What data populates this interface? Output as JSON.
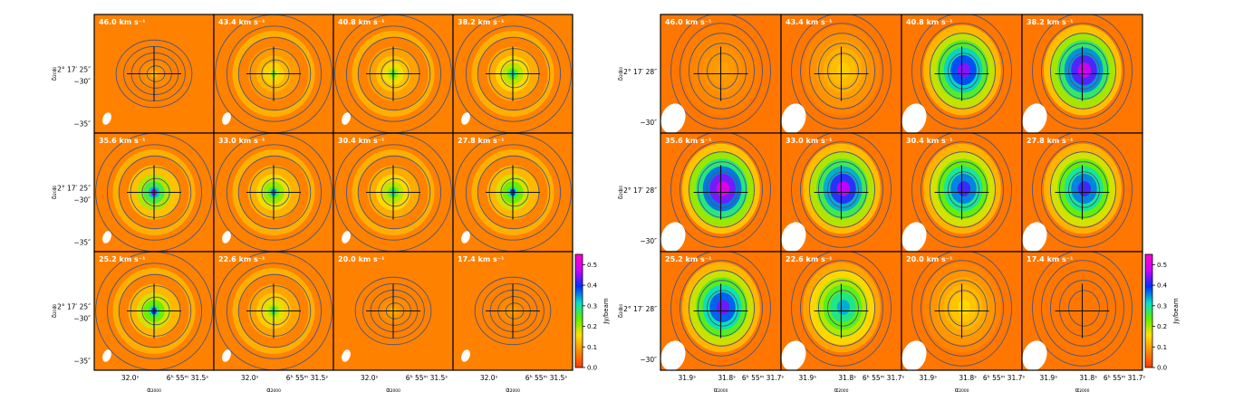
{
  "chart_data": [
    {
      "type": "heatmap",
      "panel_grid": [
        3,
        4
      ],
      "velocity_labels": [
        "46.0 km s⁻¹",
        "43.4 km s⁻¹",
        "40.8 km s⁻¹",
        "38.2 km s⁻¹",
        "35.6 km s⁻¹",
        "33.0 km s⁻¹",
        "30.4 km s⁻¹",
        "27.8 km s⁻¹",
        "25.2 km s⁻¹",
        "22.6 km s⁻¹",
        "20.0 km s⁻¹",
        "17.4 km s⁻¹"
      ],
      "peak_flux": [
        0.12,
        0.22,
        0.26,
        0.32,
        0.46,
        0.36,
        0.32,
        0.4,
        0.4,
        0.28,
        0.12,
        0.1
      ],
      "xlabel": "α₂₀₀₀",
      "ylabel": "δ₂₀₀₀",
      "x_ticks": [
        "32.0ˢ",
        "6ʰ 55ᵐ 31.5ˢ"
      ],
      "y_ticks": [
        "−2° 17′ 25″",
        "−30″",
        "−35″"
      ]
    },
    {
      "type": "heatmap",
      "panel_grid": [
        3,
        4
      ],
      "velocity_labels": [
        "46.0 km s⁻¹",
        "43.4 km s⁻¹",
        "40.8 km s⁻¹",
        "38.2 km s⁻¹",
        "35.6 km s⁻¹",
        "33.0 km s⁻¹",
        "30.4 km s⁻¹",
        "27.8 km s⁻¹",
        "25.2 km s⁻¹",
        "22.6 km s⁻¹",
        "20.0 km s⁻¹",
        "17.4 km s⁻¹"
      ],
      "peak_flux": [
        0.1,
        0.14,
        0.45,
        0.5,
        0.52,
        0.48,
        0.42,
        0.42,
        0.44,
        0.34,
        0.15,
        0.06
      ],
      "xlabel": "α₂₀₀₀",
      "ylabel": "δ₂₀₀₀",
      "x_ticks": [
        "31.9ˢ",
        "31.8ˢ",
        "6ʰ 55ᵐ 31.7ˢ"
      ],
      "y_ticks": [
        "−2° 17′ 28″",
        "−30″"
      ]
    }
  ],
  "colorbar": {
    "label": "Jy/beam",
    "ticks": [
      "0.0",
      "0.1",
      "0.2",
      "0.3",
      "0.4",
      "0.5"
    ],
    "min": 0.0,
    "max": 0.55
  },
  "colormap": [
    "#ff3b00",
    "#ff8a00",
    "#ffe100",
    "#5ff000",
    "#00e0c8",
    "#0030ff",
    "#c800ff",
    "#ff00c8"
  ],
  "contour_color": "#4a5580"
}
